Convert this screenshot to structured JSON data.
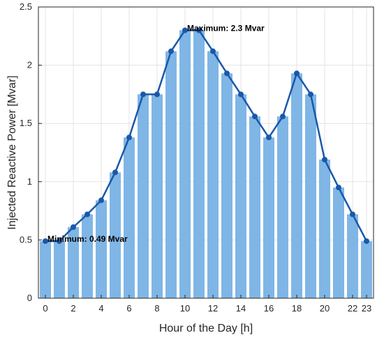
{
  "chart_data": {
    "type": "bar+line",
    "xlabel": "Hour of the Day [h]",
    "ylabel": "Injected Reactive Power [Mvar]",
    "x": [
      0,
      1,
      2,
      3,
      4,
      5,
      6,
      7,
      8,
      9,
      10,
      11,
      12,
      13,
      14,
      15,
      16,
      17,
      18,
      19,
      20,
      21,
      22,
      23
    ],
    "values": [
      0.49,
      0.49,
      0.61,
      0.72,
      0.84,
      1.08,
      1.38,
      1.75,
      1.75,
      2.12,
      2.3,
      2.3,
      2.12,
      1.93,
      1.75,
      1.56,
      1.38,
      1.56,
      1.93,
      1.75,
      1.19,
      0.95,
      0.72,
      0.49
    ],
    "xlim": [
      -0.5,
      23.5
    ],
    "ylim": [
      0,
      2.5
    ],
    "xticks": [
      0,
      2,
      4,
      6,
      8,
      10,
      12,
      14,
      16,
      18,
      20,
      22,
      23
    ],
    "yticks": [
      0,
      0.5,
      1,
      1.5,
      2,
      2.5
    ],
    "grid": true,
    "bar_color": "#7fb6e6",
    "line_color": "#1a58a8",
    "annotations": [
      {
        "text": "Maximum: 2.3 Mvar",
        "x": 10,
        "y": 2.3
      },
      {
        "text": "Minimum: 0.49 Mvar",
        "x": 0,
        "y": 0.49
      }
    ]
  }
}
